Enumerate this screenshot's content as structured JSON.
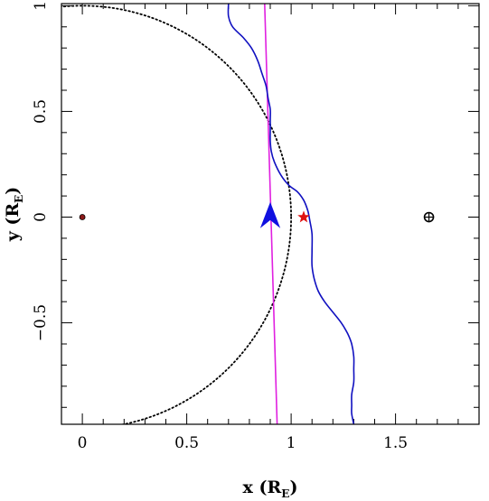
{
  "chart_data": {
    "type": "line",
    "xlabel": {
      "main": "x (R",
      "sub": "E",
      "close": ")"
    },
    "ylabel": {
      "main": "y (R",
      "sub": "E",
      "close": ")"
    },
    "xlim": [
      -0.1,
      1.9
    ],
    "ylim": [
      -0.98,
      1.01
    ],
    "x_ticks": [
      {
        "value": 0,
        "label": "0"
      },
      {
        "value": 0.5,
        "label": "0.5"
      },
      {
        "value": 1,
        "label": "1"
      },
      {
        "value": 1.5,
        "label": "1.5"
      }
    ],
    "y_ticks": [
      {
        "value": -0.5,
        "label": "−0.5"
      },
      {
        "value": 0,
        "label": "0"
      },
      {
        "value": 0.5,
        "label": "0.5"
      },
      {
        "value": 1,
        "label": "1"
      }
    ],
    "minor_tick_step": 0.1,
    "series": [
      {
        "id": "magenta-line",
        "color": "#e020e0",
        "points": [
          [
            0.873,
            1.01
          ],
          [
            0.933,
            -0.98
          ]
        ]
      },
      {
        "id": "blue-curve",
        "color": "#1010c0",
        "points": [
          [
            0.7,
            1.01
          ],
          [
            0.7,
            0.95
          ],
          [
            0.72,
            0.9
          ],
          [
            0.77,
            0.85
          ],
          [
            0.81,
            0.8
          ],
          [
            0.84,
            0.74
          ],
          [
            0.86,
            0.68
          ],
          [
            0.88,
            0.62
          ],
          [
            0.89,
            0.56
          ],
          [
            0.9,
            0.51
          ],
          [
            0.9,
            0.46
          ],
          [
            0.9,
            0.41
          ],
          [
            0.9,
            0.36
          ],
          [
            0.905,
            0.31
          ],
          [
            0.92,
            0.26
          ],
          [
            0.95,
            0.2
          ],
          [
            0.99,
            0.15
          ],
          [
            1.03,
            0.12
          ],
          [
            1.06,
            0.08
          ],
          [
            1.08,
            0.03
          ],
          [
            1.09,
            -0.02
          ],
          [
            1.1,
            -0.08
          ],
          [
            1.1,
            -0.16
          ],
          [
            1.1,
            -0.23
          ],
          [
            1.11,
            -0.29
          ],
          [
            1.13,
            -0.35
          ],
          [
            1.16,
            -0.4
          ],
          [
            1.2,
            -0.45
          ],
          [
            1.24,
            -0.5
          ],
          [
            1.27,
            -0.55
          ],
          [
            1.29,
            -0.6
          ],
          [
            1.3,
            -0.66
          ],
          [
            1.3,
            -0.72
          ],
          [
            1.3,
            -0.78
          ],
          [
            1.29,
            -0.84
          ],
          [
            1.29,
            -0.89
          ],
          [
            1.29,
            -0.93
          ],
          [
            1.3,
            -0.98
          ]
        ]
      }
    ],
    "dotted_circle": {
      "center": [
        0,
        0
      ],
      "radius": 1,
      "color": "#000000"
    },
    "markers": [
      {
        "id": "origin-dot",
        "x": 0,
        "y": 0,
        "shape": "dot",
        "color": "#8b1a1a"
      },
      {
        "id": "red-star",
        "x": 1.06,
        "y": 0.0,
        "shape": "star",
        "color": "#e01010"
      },
      {
        "id": "blue-arrow",
        "x": 0.9,
        "y": -0.02,
        "shape": "arrowhead",
        "color": "#1010e0"
      },
      {
        "id": "earth-symbol",
        "x": 1.66,
        "y": 0.0,
        "shape": "circle-plus",
        "color": "#000000"
      }
    ]
  }
}
